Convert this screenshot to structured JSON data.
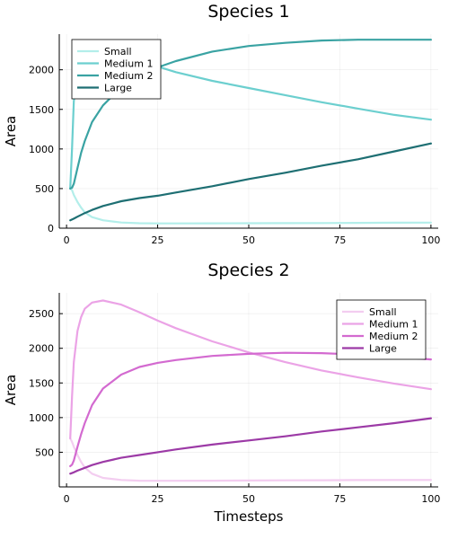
{
  "chart_data": [
    {
      "type": "line",
      "title": "Species 1",
      "xlabel": "",
      "ylabel": "Area",
      "xlim": [
        -2,
        102
      ],
      "ylim": [
        0,
        2450
      ],
      "xticks": [
        0,
        25,
        50,
        75,
        100
      ],
      "yticks": [
        0,
        500,
        1000,
        1500,
        2000
      ],
      "grid": true,
      "legend_position": "top-left",
      "series": [
        {
          "name": "Small",
          "color": "#b3eeea",
          "x": [
            1,
            1.5,
            2,
            3,
            4,
            5,
            7,
            10,
            15,
            20,
            25,
            30,
            40,
            50,
            60,
            70,
            80,
            90,
            100
          ],
          "y": [
            500,
            480,
            420,
            330,
            260,
            200,
            140,
            100,
            72,
            62,
            60,
            60,
            61,
            62,
            63,
            65,
            67,
            69,
            70
          ]
        },
        {
          "name": "Medium 1",
          "color": "#6ccfcf",
          "x": [
            1,
            1.5,
            2,
            3,
            4,
            5,
            7,
            10,
            15,
            20,
            25,
            30,
            40,
            50,
            60,
            70,
            80,
            90,
            100
          ],
          "y": [
            500,
            1000,
            1600,
            1950,
            2100,
            2180,
            2220,
            2220,
            2180,
            2110,
            2040,
            1970,
            1860,
            1770,
            1680,
            1590,
            1510,
            1430,
            1370
          ]
        },
        {
          "name": "Medium 2",
          "color": "#3aa3a3",
          "x": [
            1,
            1.5,
            2,
            3,
            4,
            5,
            7,
            10,
            15,
            20,
            25,
            30,
            40,
            50,
            60,
            70,
            80,
            90,
            100
          ],
          "y": [
            500,
            510,
            560,
            760,
            950,
            1100,
            1340,
            1550,
            1780,
            1930,
            2030,
            2110,
            2230,
            2300,
            2340,
            2370,
            2380,
            2380,
            2380
          ]
        },
        {
          "name": "Large",
          "color": "#1e6f73",
          "x": [
            1,
            2,
            3,
            5,
            7,
            10,
            15,
            20,
            25,
            30,
            40,
            50,
            60,
            70,
            80,
            90,
            100
          ],
          "y": [
            100,
            120,
            145,
            190,
            230,
            280,
            340,
            380,
            410,
            450,
            530,
            620,
            700,
            790,
            870,
            970,
            1070
          ]
        }
      ]
    },
    {
      "type": "line",
      "title": "Species 2",
      "xlabel": "Timesteps",
      "ylabel": "Area",
      "xlim": [
        -2,
        102
      ],
      "ylim": [
        0,
        2800
      ],
      "xticks": [
        0,
        25,
        50,
        75,
        100
      ],
      "yticks": [
        500,
        1000,
        1500,
        2000,
        2500
      ],
      "grid": true,
      "legend_position": "top-right",
      "series": [
        {
          "name": "Small",
          "color": "#f3cdf0",
          "x": [
            1,
            1.5,
            2,
            3,
            4,
            5,
            7,
            10,
            15,
            20,
            25,
            30,
            40,
            50,
            60,
            70,
            80,
            90,
            100
          ],
          "y": [
            700,
            650,
            580,
            460,
            360,
            280,
            190,
            130,
            100,
            90,
            88,
            88,
            90,
            92,
            94,
            96,
            98,
            100,
            100
          ]
        },
        {
          "name": "Medium 1",
          "color": "#eba3e6",
          "x": [
            1,
            1.5,
            2,
            3,
            4,
            5,
            7,
            10,
            15,
            20,
            25,
            30,
            40,
            50,
            60,
            70,
            80,
            90,
            100
          ],
          "y": [
            700,
            1300,
            1800,
            2250,
            2450,
            2570,
            2660,
            2690,
            2630,
            2520,
            2400,
            2290,
            2100,
            1940,
            1800,
            1680,
            1580,
            1490,
            1410
          ]
        },
        {
          "name": "Medium 2",
          "color": "#d36ad0",
          "x": [
            1,
            1.5,
            2,
            3,
            4,
            5,
            7,
            10,
            15,
            20,
            25,
            30,
            40,
            50,
            60,
            70,
            80,
            90,
            100
          ],
          "y": [
            300,
            320,
            380,
            580,
            760,
            920,
            1180,
            1420,
            1620,
            1730,
            1790,
            1830,
            1890,
            1920,
            1935,
            1930,
            1910,
            1880,
            1840
          ]
        },
        {
          "name": "Large",
          "color": "#9c3aa6",
          "x": [
            1,
            2,
            3,
            5,
            7,
            10,
            15,
            20,
            25,
            30,
            40,
            50,
            60,
            70,
            80,
            90,
            100
          ],
          "y": [
            190,
            210,
            235,
            275,
            315,
            360,
            420,
            460,
            500,
            540,
            610,
            670,
            730,
            800,
            860,
            920,
            990
          ]
        }
      ]
    }
  ]
}
